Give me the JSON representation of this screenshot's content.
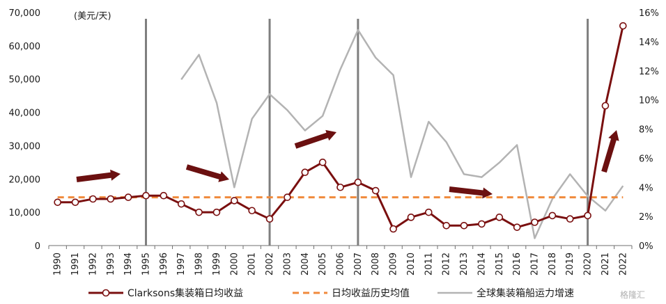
{
  "chart_data": {
    "type": "line",
    "unit_label": "(美元/天)",
    "categories": [
      "1990",
      "1991",
      "1992",
      "1993",
      "1994",
      "1995",
      "1996",
      "1997",
      "1998",
      "1999",
      "2000",
      "2001",
      "2002",
      "2003",
      "2004",
      "2005",
      "2006",
      "2007",
      "2008",
      "2009",
      "2010",
      "2011",
      "2012",
      "2013",
      "2014",
      "2015",
      "2016",
      "2017",
      "2018",
      "2019",
      "2020",
      "2021",
      "2022"
    ],
    "y_left": {
      "min": 0,
      "max": 70000,
      "ticks": [
        "0",
        "10,000",
        "20,000",
        "30,000",
        "40,000",
        "50,000",
        "60,000",
        "70,000"
      ]
    },
    "y_right": {
      "min": 0,
      "max": 16,
      "ticks": [
        "0%",
        "2%",
        "4%",
        "6%",
        "8%",
        "10%",
        "12%",
        "14%",
        "16%"
      ]
    },
    "series": [
      {
        "name": "Clarksons集装箱日均收益",
        "axis": "left",
        "color": "#7a0f0f",
        "values": [
          13000,
          13000,
          14000,
          14000,
          14500,
          15000,
          15000,
          12500,
          10000,
          10000,
          13500,
          10500,
          8000,
          14500,
          22000,
          25000,
          17500,
          19000,
          16500,
          5000,
          8500,
          10000,
          6000,
          6000,
          6500,
          8500,
          5500,
          7000,
          9000,
          8000,
          9000,
          42000,
          66000
        ]
      },
      {
        "name": "日均收益历史均值",
        "axis": "left",
        "color": "#f08a3c",
        "values": [
          14500,
          14500,
          14500,
          14500,
          14500,
          14500,
          14500,
          14500,
          14500,
          14500,
          14500,
          14500,
          14500,
          14500,
          14500,
          14500,
          14500,
          14500,
          14500,
          14500,
          14500,
          14500,
          14500,
          14500,
          14500,
          14500,
          14500,
          14500,
          14500,
          14500,
          14500,
          14500,
          14500
        ]
      },
      {
        "name": "全球集装箱船运力增速",
        "axis": "right",
        "color": "#b3b3b3",
        "values": [
          null,
          null,
          null,
          null,
          null,
          null,
          null,
          11.4,
          13.1,
          9.8,
          4.0,
          8.7,
          10.4,
          9.3,
          7.9,
          8.9,
          12.1,
          14.8,
          12.9,
          11.7,
          4.7,
          8.5,
          7.1,
          4.9,
          4.7,
          5.7,
          6.9,
          0.5,
          3.2,
          4.9,
          3.4,
          2.4,
          4.1
        ]
      }
    ],
    "vertical_lines": [
      "1995",
      "2002",
      "2007",
      "2020"
    ],
    "legend_position": "bottom",
    "watermark": "格隆汇"
  }
}
